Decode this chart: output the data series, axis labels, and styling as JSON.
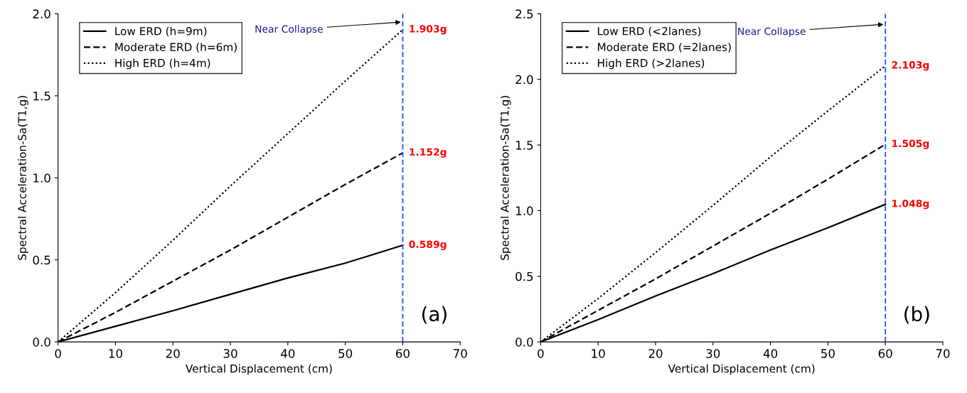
{
  "chart_data": [
    {
      "type": "line",
      "xlabel": "Vertical Displacement (cm)",
      "ylabel": "Spectral Acceleration-Sa(T1,g)",
      "x": [
        0,
        10,
        20,
        30,
        40,
        50,
        60
      ],
      "series": [
        {
          "name": "Low ERD (h=9m)",
          "color": "#000000",
          "line_style": "solid",
          "values": [
            0,
            0.095,
            0.19,
            0.29,
            0.39,
            0.48,
            0.589
          ],
          "value_labels": [
            null,
            null,
            null,
            null,
            null,
            null,
            "0.589g"
          ]
        },
        {
          "name": "Moderate ERD (h=6m)",
          "color": "#000000",
          "line_style": "dashed",
          "values": [
            0,
            0.18,
            0.37,
            0.56,
            0.76,
            0.96,
            1.152
          ],
          "value_labels": [
            null,
            null,
            null,
            null,
            null,
            null,
            "1.152g"
          ]
        },
        {
          "name": "High ERD (h=4m)",
          "color": "#000000",
          "line_style": "dotted",
          "values": [
            0,
            0.3,
            0.62,
            0.95,
            1.27,
            1.59,
            1.903
          ],
          "value_labels": [
            null,
            null,
            null,
            null,
            null,
            null,
            "1.903g"
          ]
        }
      ],
      "xlim": [
        0,
        70
      ],
      "xticks": [
        0,
        10,
        20,
        30,
        40,
        50,
        60,
        70
      ],
      "ylim": [
        0,
        2.0
      ],
      "yticks": [
        {
          "value": 0,
          "label": "0.0"
        },
        {
          "value": 0.5,
          "label": "0.5"
        },
        {
          "value": 1.0,
          "label": "1.0"
        },
        {
          "value": 1.5,
          "label": "1.5"
        },
        {
          "value": 2.0,
          "label": "2.0"
        }
      ],
      "ref_lines": [
        {
          "axis": "x",
          "value": 60,
          "color": "#1f4fff",
          "line_style": "dashed"
        }
      ],
      "annotations": [
        {
          "text": "Near Collapse",
          "x": 60,
          "y": 1.95
        },
        "(a)"
      ],
      "legend": "top left",
      "grid": false,
      "marker": "none"
    },
    {
      "type": "line",
      "xlabel": "Vertical Displacement (cm)",
      "ylabel": "Spectral Acceleration-Sa(T1,g)",
      "x": [
        0,
        10,
        20,
        30,
        40,
        50,
        60
      ],
      "series": [
        {
          "name": "Low ERD (<2lanes)",
          "color": "#000000",
          "line_style": "solid",
          "values": [
            0,
            0.17,
            0.35,
            0.52,
            0.7,
            0.87,
            1.048
          ],
          "value_labels": [
            null,
            null,
            null,
            null,
            null,
            null,
            "1.048g"
          ]
        },
        {
          "name": "Moderate ERD (=2lanes)",
          "color": "#000000",
          "line_style": "dashed",
          "values": [
            0,
            0.24,
            0.48,
            0.73,
            0.98,
            1.24,
            1.505
          ],
          "value_labels": [
            null,
            null,
            null,
            null,
            null,
            null,
            "1.505g"
          ]
        },
        {
          "name": "High ERD (>2lanes)",
          "color": "#000000",
          "line_style": "dotted",
          "values": [
            0,
            0.33,
            0.68,
            1.04,
            1.41,
            1.76,
            2.103
          ],
          "value_labels": [
            null,
            null,
            null,
            null,
            null,
            null,
            "2.103g"
          ]
        }
      ],
      "xlim": [
        0,
        70
      ],
      "xticks": [
        0,
        10,
        20,
        30,
        40,
        50,
        60,
        70
      ],
      "ylim": [
        0,
        2.5
      ],
      "yticks": [
        {
          "value": 0,
          "label": "0.0"
        },
        {
          "value": 0.5,
          "label": "0.5"
        },
        {
          "value": 1.0,
          "label": "1.0"
        },
        {
          "value": 1.5,
          "label": "1.5"
        },
        {
          "value": 2.0,
          "label": "2.0"
        },
        {
          "value": 2.5,
          "label": "2.5"
        }
      ],
      "ref_lines": [
        {
          "axis": "x",
          "value": 60,
          "color": "#1f4fff",
          "line_style": "dashed"
        }
      ],
      "annotations": [
        {
          "text": "Near Collapse",
          "x": 60,
          "y": 2.42
        },
        "(b)"
      ],
      "legend": "top left",
      "grid": false,
      "marker": "none"
    }
  ]
}
